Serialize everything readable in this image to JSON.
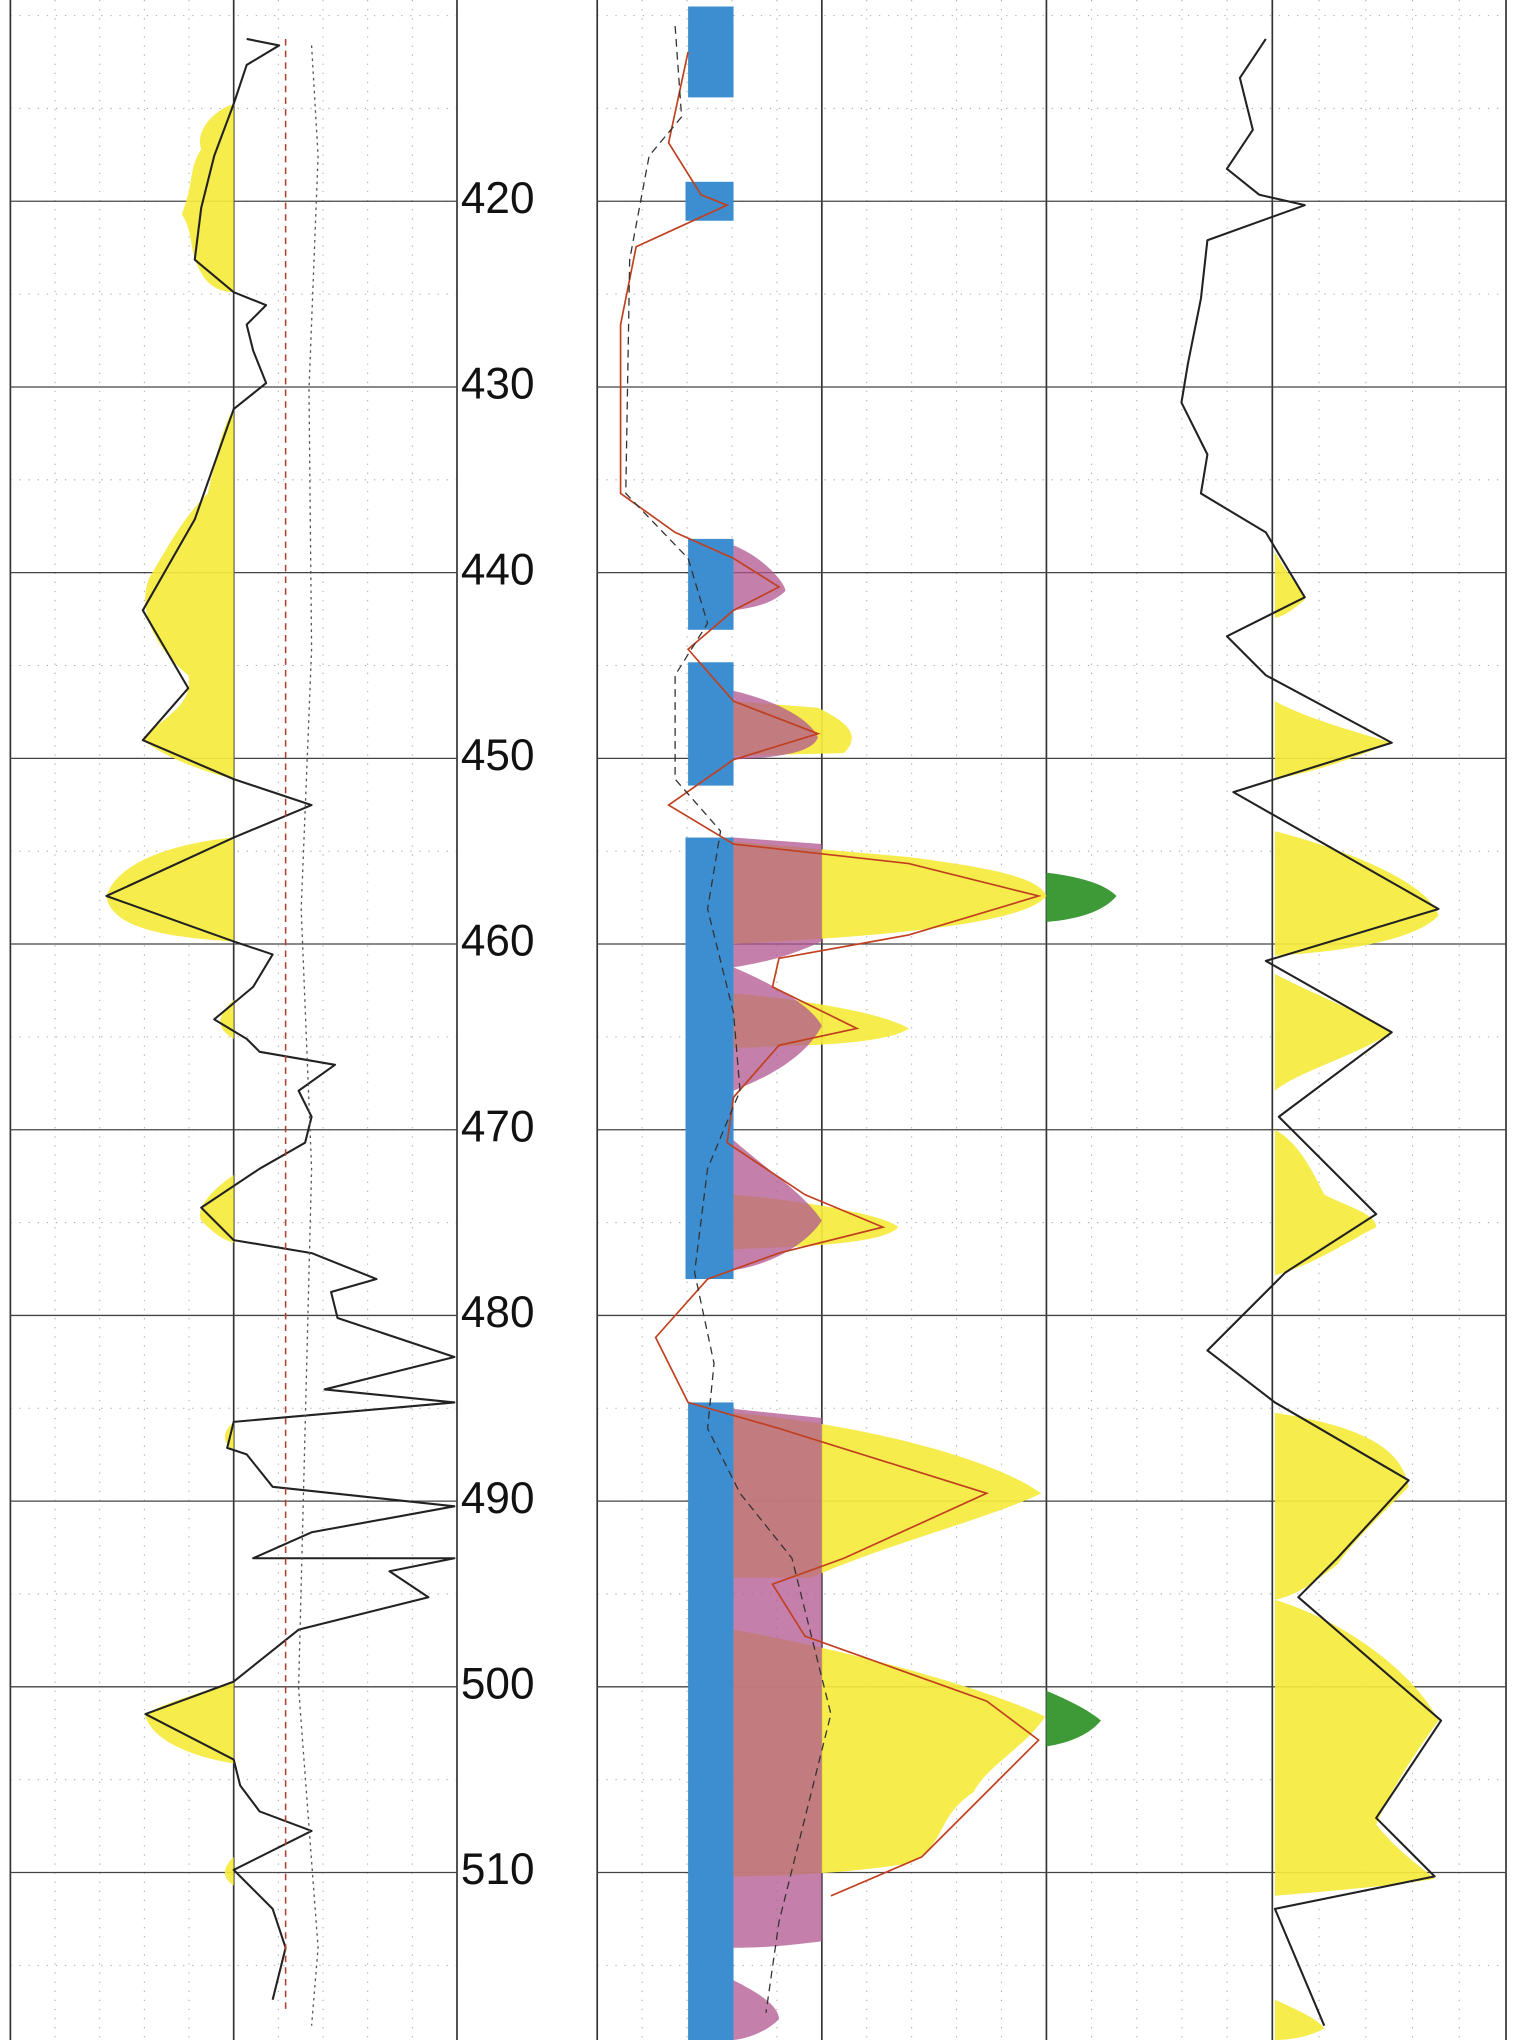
{
  "depth_labels": [
    420,
    430,
    440,
    450,
    460,
    470,
    480,
    490,
    500,
    510
  ]
}
